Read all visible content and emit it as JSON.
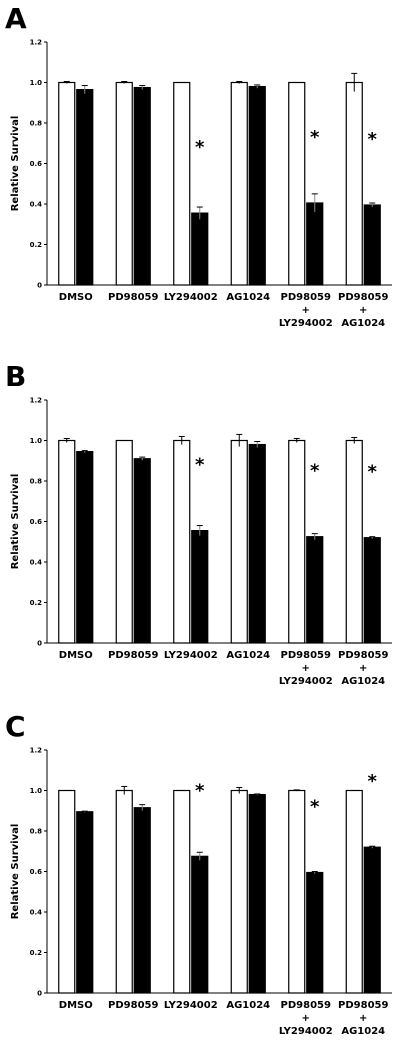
{
  "chart_data": [
    {
      "type": "bar",
      "panel": "A",
      "y_label": "Relative Survival",
      "categories": [
        "DMSO",
        "PD98059",
        "LY294002",
        "AG1024",
        "PD98059\n+\nLY294002",
        "PD98059\n+\nAG1024"
      ],
      "ylim": [
        0,
        1.2
      ],
      "yticks": [
        0,
        0.2,
        0.4,
        0.6,
        0.8,
        {
          "value": 1,
          "label": "1.0"
        },
        1.2
      ],
      "series": [
        {
          "color": "#ffffff",
          "values": [
            1,
            1,
            1,
            1,
            1,
            1
          ],
          "errors": [
            0.005,
            0.005,
            0,
            0.005,
            0,
            0.045
          ]
        },
        {
          "color": "#000000",
          "values": [
            0.965,
            0.975,
            0.355,
            0.98,
            0.405,
            0.395
          ],
          "errors": [
            0.02,
            0.01,
            0.03,
            0.008,
            0.045,
            0.01
          ],
          "markers": [
            null,
            null,
            "*",
            null,
            "*",
            "*"
          ]
        }
      ]
    },
    {
      "type": "bar",
      "panel": "B",
      "y_label": "Relative Survival",
      "categories": [
        "DMSO",
        "PD98059",
        "LY294002",
        "AG1024",
        "PD98059\n+\nLY294002",
        "PD98059\n+\nAG1024"
      ],
      "ylim": [
        0,
        1.2
      ],
      "yticks": [
        0,
        0.2,
        0.4,
        0.6,
        0.8,
        {
          "value": 1,
          "label": "1.0"
        },
        1.2
      ],
      "series": [
        {
          "color": "#ffffff",
          "values": [
            1,
            1,
            1,
            1,
            1,
            1
          ],
          "errors": [
            0.01,
            0,
            0.02,
            0.03,
            0.01,
            0.015
          ]
        },
        {
          "color": "#000000",
          "values": [
            0.945,
            0.91,
            0.555,
            0.98,
            0.525,
            0.52
          ],
          "errors": [
            0.005,
            0.008,
            0.025,
            0.015,
            0.015,
            0.005
          ],
          "markers": [
            null,
            null,
            "*",
            null,
            "*",
            "*"
          ]
        }
      ]
    },
    {
      "type": "bar",
      "panel": "C",
      "y_label": "Relative Survival",
      "categories": [
        "DMSO",
        "PD98059",
        "LY294002",
        "AG1024",
        "PD98059\n+\nLY294002",
        "PD98059\n+\nAG1024"
      ],
      "ylim": [
        0,
        1.2
      ],
      "yticks": [
        0,
        0.2,
        0.4,
        0.6,
        0.8,
        {
          "value": 1,
          "label": "1.0"
        },
        1.2
      ],
      "series": [
        {
          "color": "#ffffff",
          "values": [
            1,
            1,
            1,
            1,
            1,
            1
          ],
          "errors": [
            0,
            0.02,
            0,
            0.015,
            0.003,
            0
          ]
        },
        {
          "color": "#000000",
          "values": [
            0.895,
            0.915,
            0.675,
            0.98,
            0.595,
            0.72
          ],
          "errors": [
            0.003,
            0.015,
            0.02,
            0.003,
            0.005,
            0.005
          ],
          "markers": [
            null,
            null,
            "*",
            null,
            "*",
            "*"
          ]
        }
      ]
    }
  ]
}
